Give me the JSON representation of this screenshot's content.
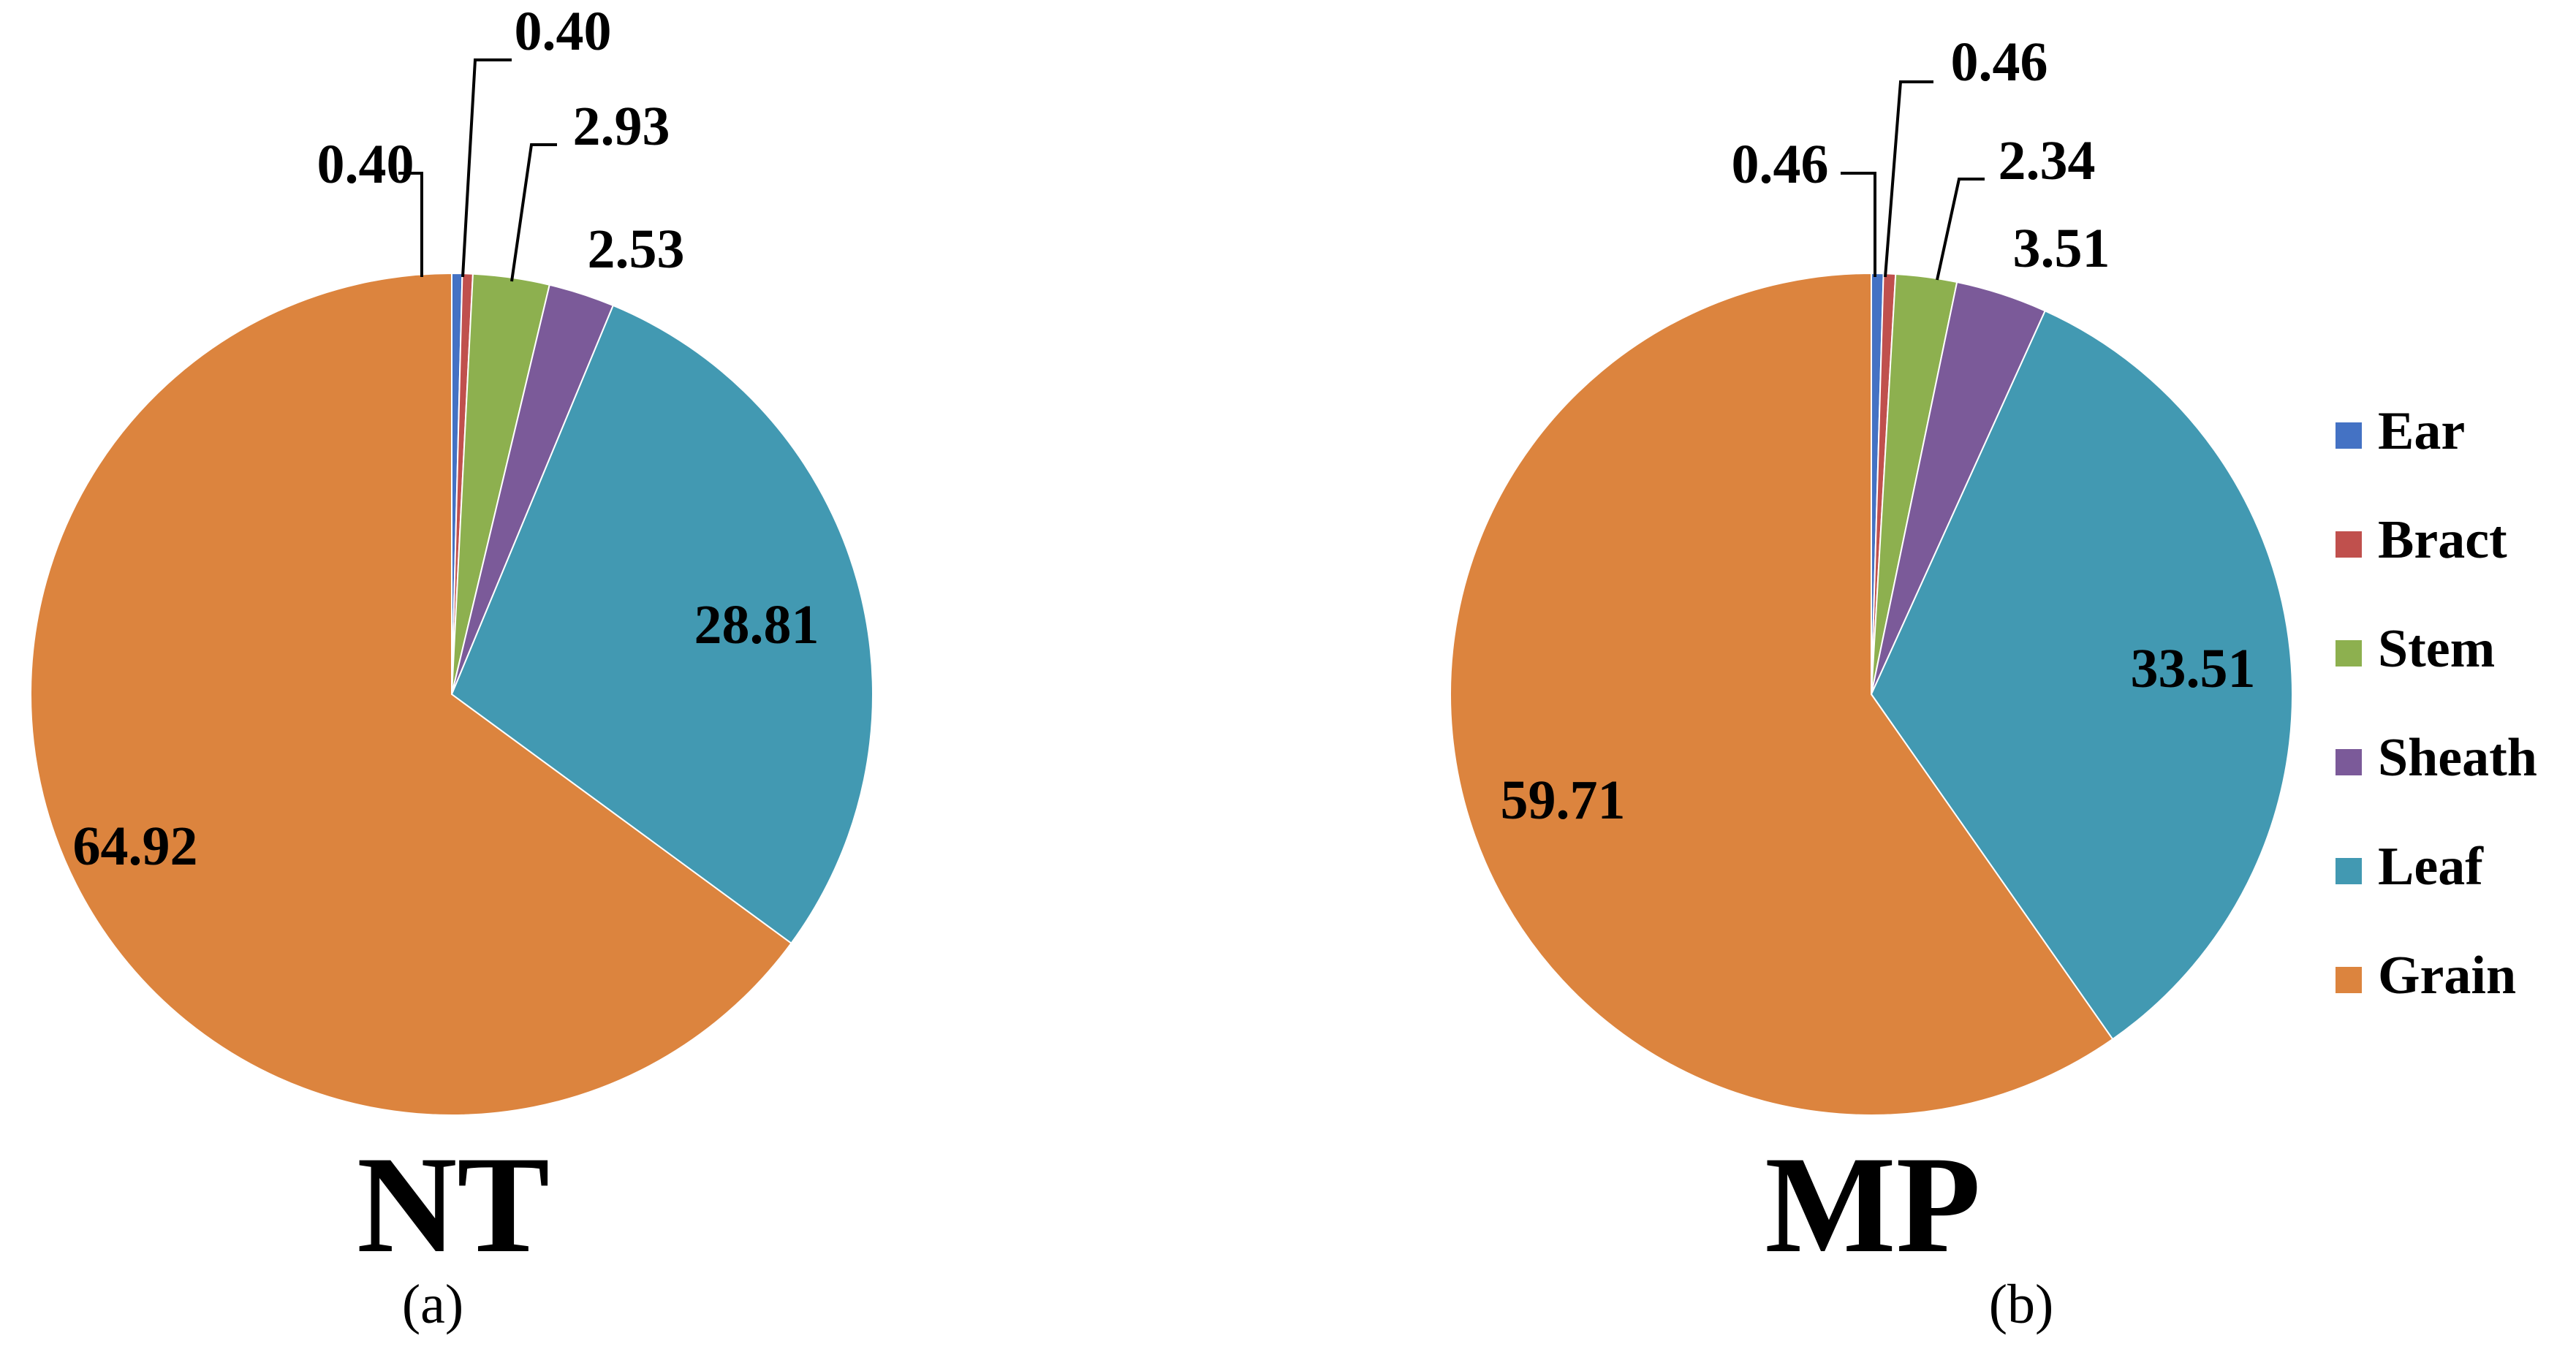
{
  "chart_data": [
    {
      "type": "pie",
      "title": "NT",
      "panel_label": "(a)",
      "categories": [
        "Ear",
        "Bract",
        "Stem",
        "Sheath",
        "Leaf",
        "Grain"
      ],
      "values": [
        0.4,
        0.4,
        2.93,
        2.53,
        28.81,
        64.92
      ],
      "value_labels": [
        "0.40",
        "0.40",
        "2.93",
        "2.53",
        "28.81",
        "64.92"
      ],
      "colors": [
        "#4472c4",
        "#c0504d",
        "#8db04f",
        "#7b5a99",
        "#4299b2",
        "#dc843e"
      ],
      "start": "12 o'clock, clockwise"
    },
    {
      "type": "pie",
      "title": "MP",
      "panel_label": "(b)",
      "categories": [
        "Ear",
        "Bract",
        "Stem",
        "Sheath",
        "Leaf",
        "Grain"
      ],
      "values": [
        0.46,
        0.46,
        2.34,
        3.51,
        33.51,
        59.71
      ],
      "value_labels": [
        "0.46",
        "0.46",
        "2.34",
        "3.51",
        "33.51",
        "59.71"
      ],
      "colors": [
        "#4472c4",
        "#c0504d",
        "#8db04f",
        "#7b5a99",
        "#4299b2",
        "#dc843e"
      ],
      "start": "12 o'clock, clockwise"
    }
  ],
  "legend": {
    "placement": "right",
    "items": [
      {
        "label": "Ear",
        "color": "#4472c4"
      },
      {
        "label": "Bract",
        "color": "#c0504d"
      },
      {
        "label": "Stem",
        "color": "#8db04f"
      },
      {
        "label": "Sheath",
        "color": "#7b5a99"
      },
      {
        "label": "Leaf",
        "color": "#4299b2"
      },
      {
        "label": "Grain",
        "color": "#dc843e"
      }
    ]
  }
}
